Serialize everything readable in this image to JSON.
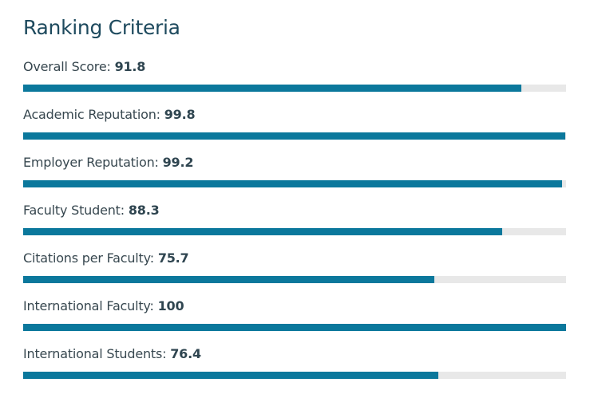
{
  "header": {
    "title": "Ranking Criteria"
  },
  "colors": {
    "bar_fill": "#0b789c",
    "bar_track": "#e8e8e8",
    "title": "#1e4a5e",
    "text": "#37474f"
  },
  "chart_data": {
    "type": "bar",
    "orientation": "horizontal",
    "title": "Ranking Criteria",
    "xlim": [
      0,
      100
    ],
    "categories": [
      "Overall Score",
      "Academic Reputation",
      "Employer Reputation",
      "Faculty Student",
      "Citations per Faculty",
      "International Faculty",
      "International Students"
    ],
    "values": [
      91.8,
      99.8,
      99.2,
      88.3,
      75.7,
      100,
      76.4
    ],
    "value_labels": [
      "91.8",
      "99.8",
      "99.2",
      "88.3",
      "75.7",
      "100",
      "76.4"
    ],
    "grid": false,
    "legend": "none"
  }
}
